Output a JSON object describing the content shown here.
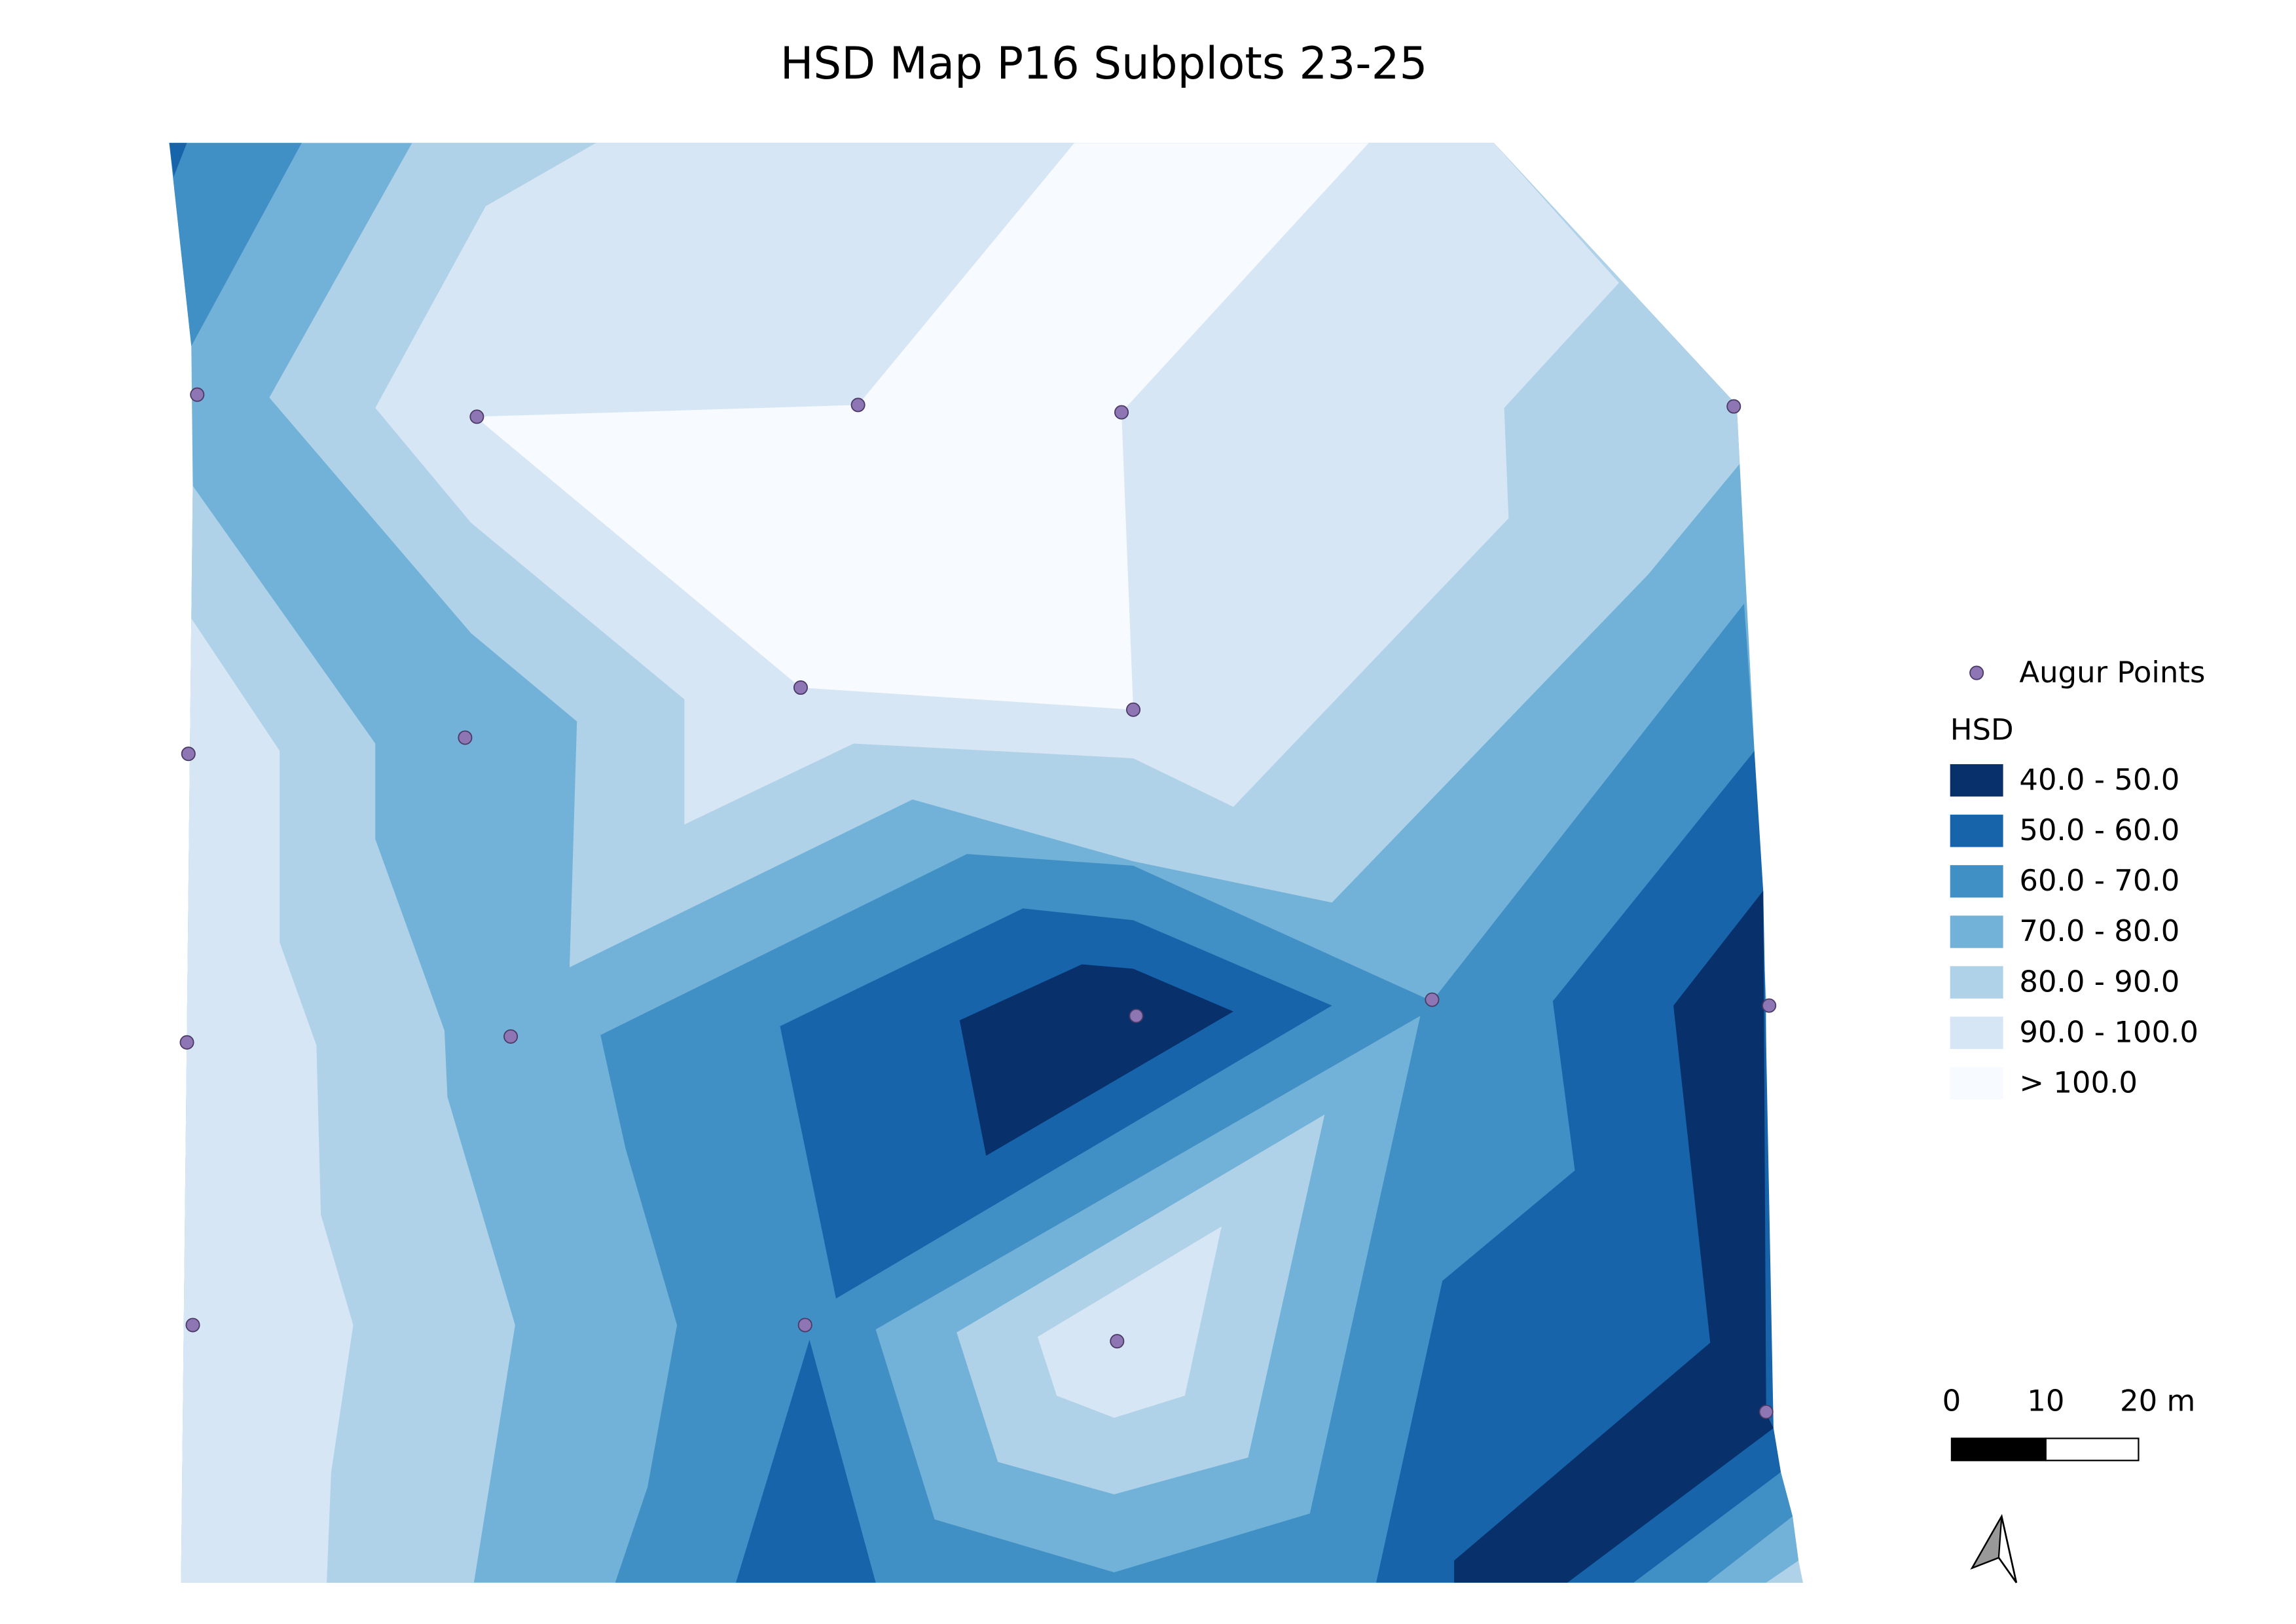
{
  "title": "HSD Map P16 Subplots 23-25",
  "legend": {
    "points_label": "Augur Points",
    "points_color": "#8e76b4",
    "title": "HSD",
    "classes": [
      {
        "label": "40.0 - 50.0",
        "color": "#08306b"
      },
      {
        "label": "50.0 - 60.0",
        "color": "#1764ab"
      },
      {
        "label": "60.0 - 70.0",
        "color": "#4090c5"
      },
      {
        "label": "70.0 - 80.0",
        "color": "#73b2d8"
      },
      {
        "label": "80.0 - 90.0",
        "color": "#b0d2e8"
      },
      {
        "label": "90.0 - 100.0",
        "color": "#d7e6f4"
      },
      {
        "label": "> 100.0",
        "color": "#f7fbff"
      }
    ]
  },
  "scale_bar": {
    "labels": [
      "0",
      "10",
      "20 m"
    ]
  }
}
